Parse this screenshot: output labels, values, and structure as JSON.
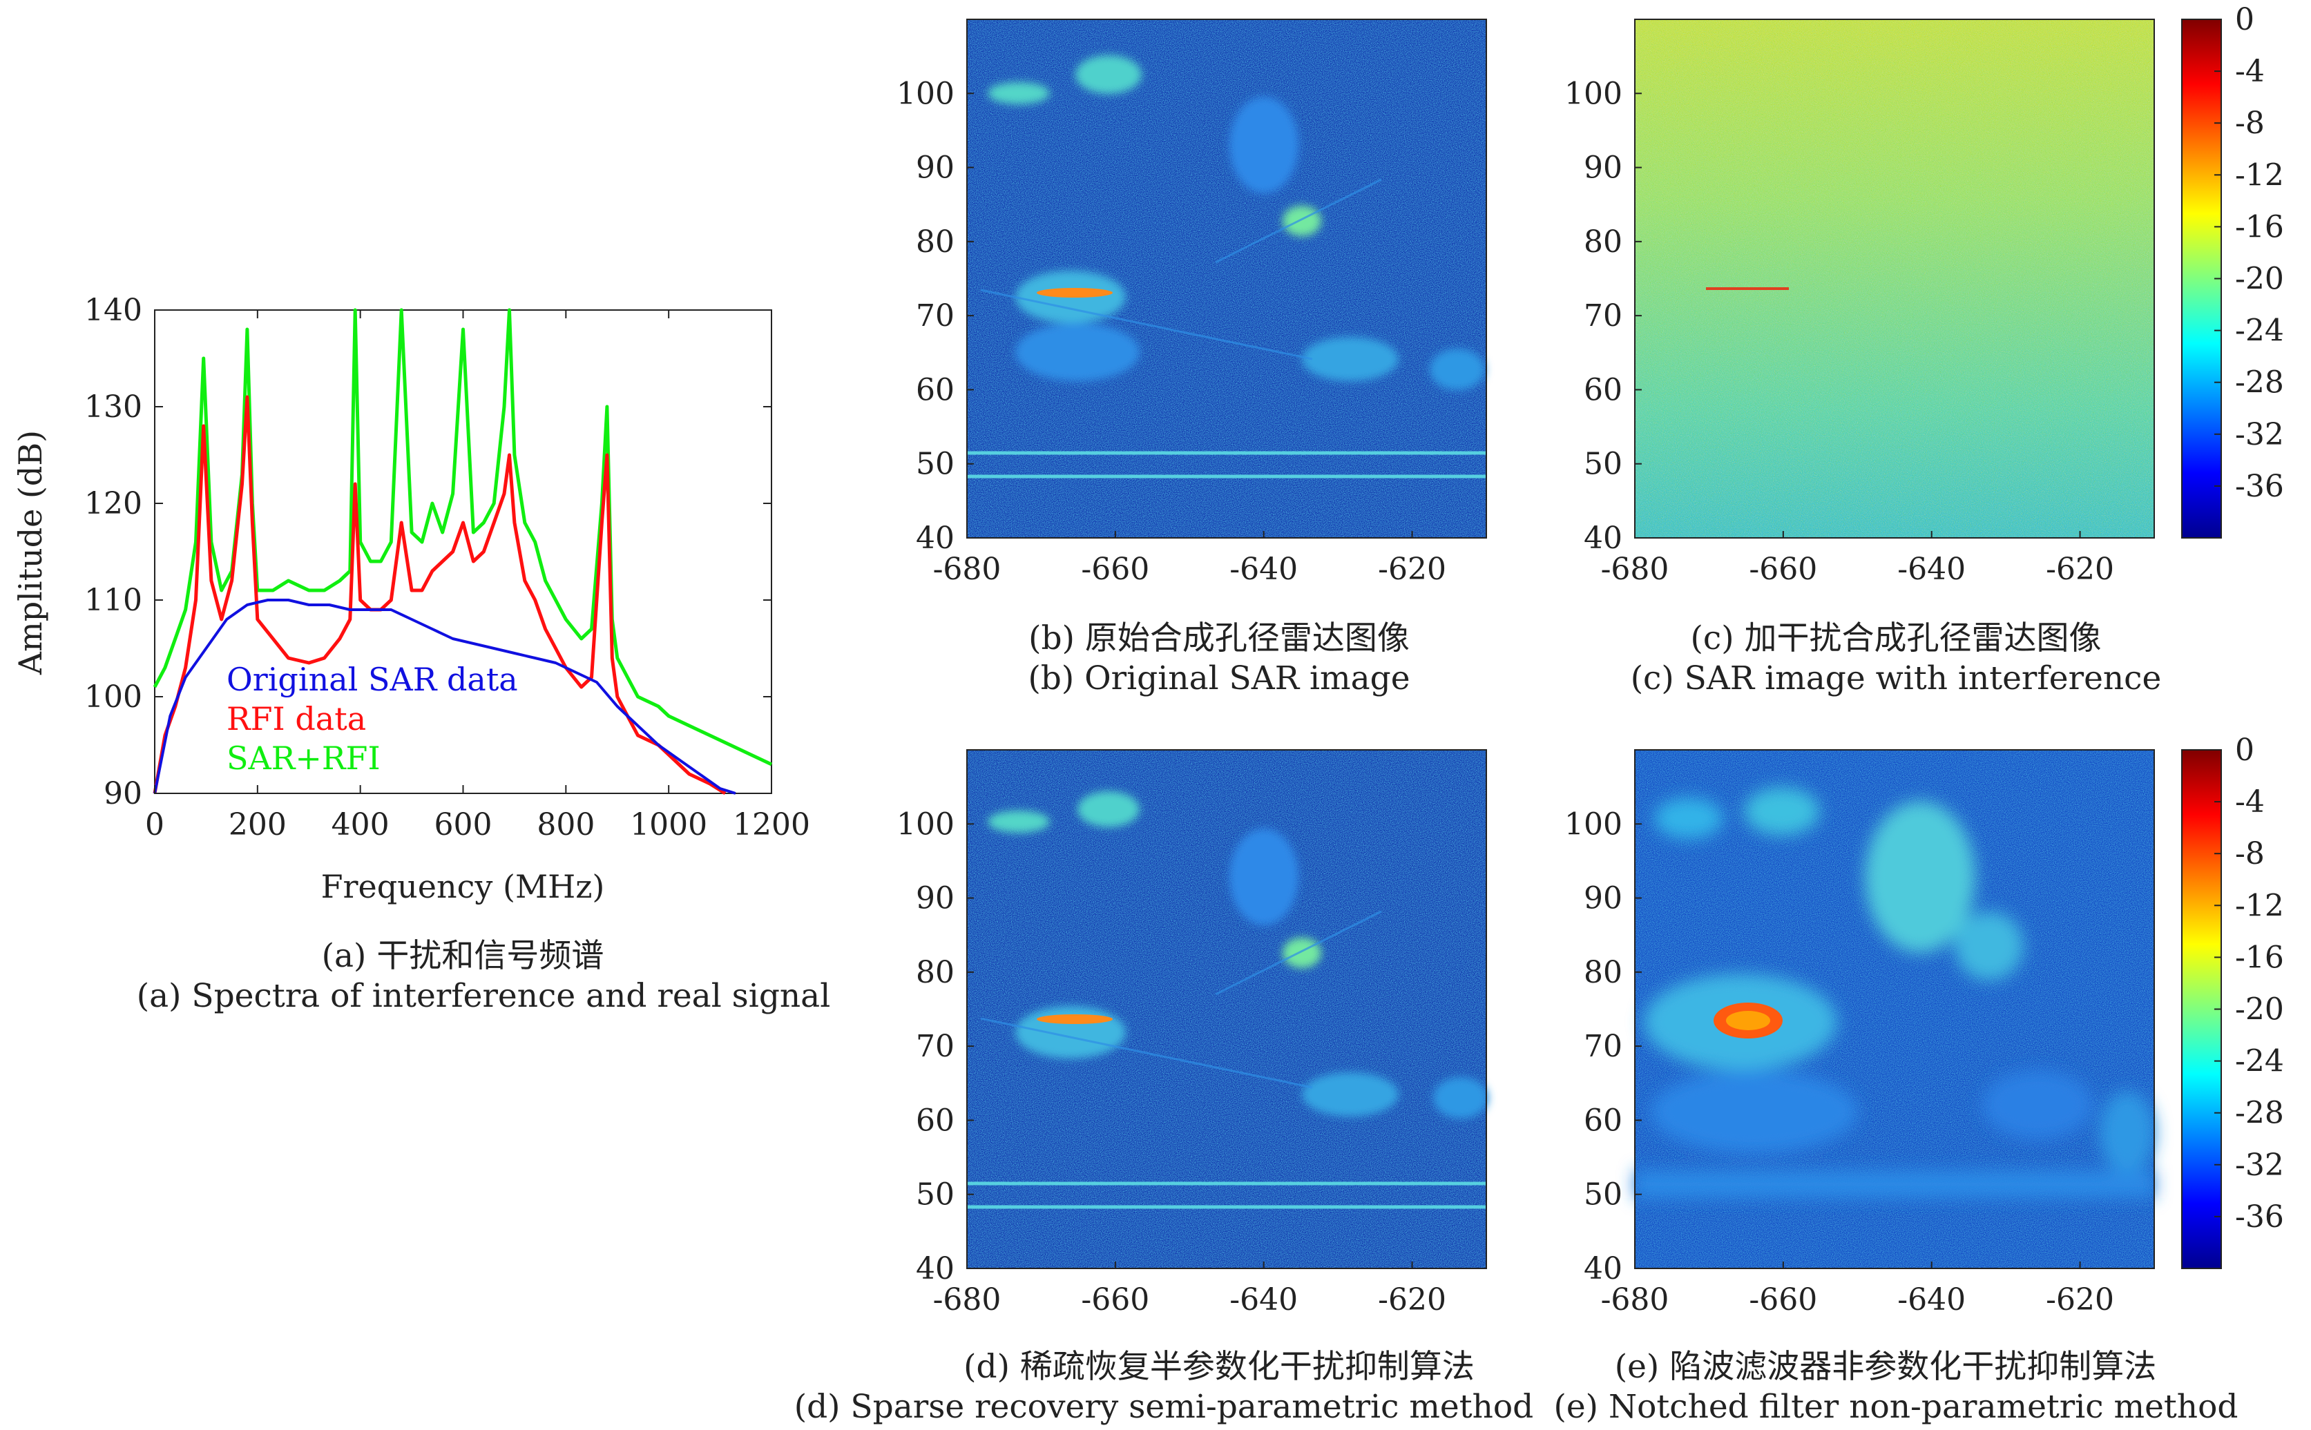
{
  "chart_data": [
    {
      "type": "line",
      "xlabel": "Frequency (MHz)",
      "ylabel": "Amplitude (dB)",
      "xlim": [
        0,
        1200
      ],
      "ylim": [
        90,
        140
      ],
      "xticks": [
        "0",
        "200",
        "400",
        "600",
        "800",
        "1000",
        "1200"
      ],
      "yticks": [
        "90",
        "100",
        "110",
        "120",
        "130",
        "140"
      ],
      "legend_position": "bottom-left",
      "grid": false,
      "series": [
        {
          "name": "Original SAR data",
          "color": "#1010e0",
          "x": [
            0,
            30,
            60,
            100,
            140,
            180,
            220,
            260,
            300,
            340,
            380,
            420,
            460,
            500,
            540,
            580,
            620,
            660,
            700,
            740,
            780,
            820,
            860,
            900,
            940,
            980,
            1020,
            1060,
            1100,
            1130
          ],
          "y": [
            90,
            98,
            102,
            105,
            108,
            109.5,
            110,
            110,
            109.5,
            109.5,
            109,
            109,
            109,
            108,
            107,
            106,
            105.5,
            105,
            104.5,
            104,
            103.5,
            102.5,
            101.5,
            99,
            97,
            95,
            93.5,
            92,
            90.5,
            90
          ]
        },
        {
          "name": "RFI data",
          "color": "#ff1010",
          "x": [
            0,
            20,
            40,
            60,
            80,
            95,
            110,
            130,
            150,
            170,
            180,
            190,
            200,
            230,
            260,
            300,
            330,
            360,
            380,
            390,
            400,
            420,
            440,
            460,
            480,
            500,
            520,
            540,
            560,
            580,
            600,
            620,
            640,
            660,
            680,
            690,
            700,
            720,
            740,
            760,
            780,
            800,
            830,
            850,
            870,
            880,
            890,
            900,
            920,
            940,
            960,
            980,
            1000,
            1040,
            1080,
            1110
          ],
          "y": [
            90,
            96,
            99,
            103,
            110,
            128,
            112,
            108,
            112,
            122,
            131,
            118,
            108,
            106,
            104,
            103.5,
            104,
            106,
            108,
            122,
            110,
            109,
            109,
            110,
            118,
            111,
            111,
            113,
            114,
            115,
            118,
            114,
            115,
            118,
            121,
            125,
            118,
            112,
            110,
            107,
            105,
            103,
            101,
            102,
            118,
            125,
            104,
            100,
            98,
            96,
            95.5,
            95,
            94,
            92,
            91,
            90
          ]
        },
        {
          "name": "SAR+RFI",
          "color": "#10ee10",
          "x": [
            0,
            20,
            40,
            60,
            80,
            95,
            110,
            130,
            150,
            170,
            180,
            190,
            200,
            230,
            260,
            300,
            330,
            360,
            380,
            390,
            400,
            420,
            440,
            460,
            480,
            500,
            520,
            540,
            560,
            580,
            600,
            620,
            640,
            660,
            680,
            690,
            700,
            720,
            740,
            760,
            780,
            800,
            830,
            850,
            870,
            880,
            890,
            900,
            920,
            940,
            960,
            980,
            1000,
            1040,
            1080,
            1120,
            1160,
            1200
          ],
          "y": [
            101,
            103,
            106,
            109,
            116,
            135,
            116,
            111,
            113,
            123,
            138,
            120,
            111,
            111,
            112,
            111,
            111,
            112,
            113,
            140,
            116,
            114,
            114,
            116,
            140,
            117,
            116,
            120,
            117,
            121,
            138,
            117,
            118,
            120,
            130,
            140,
            125,
            118,
            116,
            112,
            110,
            108,
            106,
            107,
            120,
            130,
            108,
            104,
            102,
            100,
            99.5,
            99,
            98,
            97,
            96,
            95,
            94,
            93
          ]
        }
      ]
    },
    {
      "type": "heatmap",
      "xlim": [
        -680,
        -610
      ],
      "ylim": [
        40,
        110
      ],
      "xticks": [
        "-680",
        "-660",
        "-640",
        "-620"
      ],
      "yticks": [
        "40",
        "50",
        "60",
        "70",
        "80",
        "90",
        "100"
      ]
    },
    {
      "type": "heatmap",
      "xlim": [
        -680,
        -610
      ],
      "ylim": [
        40,
        110
      ],
      "xticks": [
        "-680",
        "-660",
        "-640",
        "-620"
      ],
      "yticks": [
        "40",
        "50",
        "60",
        "70",
        "80",
        "90",
        "100"
      ],
      "colorbar_ticks": [
        "0",
        "-4",
        "-8",
        "-12",
        "-16",
        "-20",
        "-24",
        "-28",
        "-32",
        "-36"
      ]
    },
    {
      "type": "heatmap",
      "xlim": [
        -680,
        -610
      ],
      "ylim": [
        40,
        110
      ],
      "xticks": [
        "-680",
        "-660",
        "-640",
        "-620"
      ],
      "yticks": [
        "40",
        "50",
        "60",
        "70",
        "80",
        "90",
        "100"
      ]
    },
    {
      "type": "heatmap",
      "xlim": [
        -680,
        -610
      ],
      "ylim": [
        40,
        110
      ],
      "xticks": [
        "-680",
        "-660",
        "-640",
        "-620"
      ],
      "yticks": [
        "40",
        "50",
        "60",
        "70",
        "80",
        "90",
        "100"
      ],
      "colorbar_ticks": [
        "0",
        "-4",
        "-8",
        "-12",
        "-16",
        "-20",
        "-24",
        "-28",
        "-32",
        "-36"
      ]
    }
  ],
  "captions": {
    "a_cn": "(a) 干扰和信号频谱",
    "a_en": "(a) Spectra of interference and real signal",
    "b_cn": "(b) 原始合成孔径雷达图像",
    "b_en": "(b) Original SAR image",
    "c_cn": "(c) 加干扰合成孔径雷达图像",
    "c_en": "(c) SAR image with interference",
    "d_cn": "(d) 稀疏恢复半参数化干扰抑制算法",
    "d_en": "(d) Sparse recovery semi-parametric method",
    "e_cn": "(e) 陷波滤波器非参数化干扰抑制算法",
    "e_en": "(e) Notched filter non-parametric method"
  }
}
